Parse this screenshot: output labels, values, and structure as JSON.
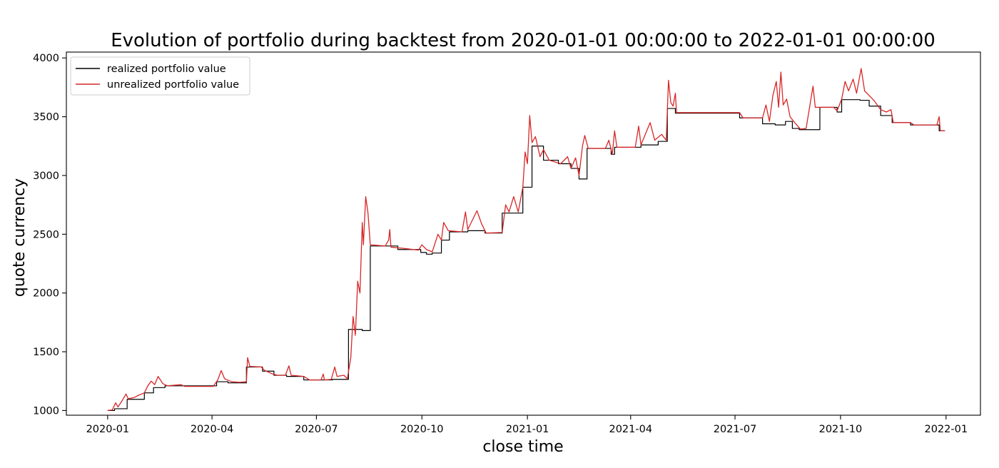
{
  "chart_data": {
    "type": "line",
    "title": "Evolution of portfolio during backtest from 2020-01-01 00:00:00 to 2022-01-01 00:00:00",
    "xlabel": "close time",
    "ylabel": "quote currency",
    "xlim": [
      "2019-11-26",
      "2022-01-31"
    ],
    "ylim": [
      960,
      4050
    ],
    "x_ticks": [
      "2020-01",
      "2020-04",
      "2020-07",
      "2020-10",
      "2021-01",
      "2021-04",
      "2021-07",
      "2021-10",
      "2022-01"
    ],
    "y_ticks": [
      1000,
      1500,
      2000,
      2500,
      3000,
      3500,
      4000
    ],
    "grid": false,
    "legend_position": "top-left",
    "series": [
      {
        "name": "realized portfolio value",
        "color": "#000000",
        "points": [
          [
            "2020-01-01",
            1000
          ],
          [
            "2020-01-07",
            1000
          ],
          [
            "2020-01-07",
            1015
          ],
          [
            "2020-01-18",
            1015
          ],
          [
            "2020-01-18",
            1095
          ],
          [
            "2020-02-02",
            1095
          ],
          [
            "2020-02-02",
            1150
          ],
          [
            "2020-02-10",
            1150
          ],
          [
            "2020-02-10",
            1195
          ],
          [
            "2020-02-20",
            1195
          ],
          [
            "2020-02-20",
            1210
          ],
          [
            "2020-04-05",
            1210
          ],
          [
            "2020-04-05",
            1245
          ],
          [
            "2020-04-15",
            1245
          ],
          [
            "2020-04-15",
            1235
          ],
          [
            "2020-05-01",
            1235
          ],
          [
            "2020-05-01",
            1370
          ],
          [
            "2020-05-15",
            1370
          ],
          [
            "2020-05-15",
            1335
          ],
          [
            "2020-05-25",
            1335
          ],
          [
            "2020-05-25",
            1300
          ],
          [
            "2020-06-05",
            1300
          ],
          [
            "2020-06-05",
            1290
          ],
          [
            "2020-06-20",
            1290
          ],
          [
            "2020-06-20",
            1260
          ],
          [
            "2020-07-15",
            1260
          ],
          [
            "2020-07-15",
            1265
          ],
          [
            "2020-07-29",
            1265
          ],
          [
            "2020-07-29",
            1690
          ],
          [
            "2020-08-10",
            1690
          ],
          [
            "2020-08-10",
            1680
          ],
          [
            "2020-08-17",
            1680
          ],
          [
            "2020-08-17",
            2400
          ],
          [
            "2020-09-10",
            2400
          ],
          [
            "2020-09-10",
            2370
          ],
          [
            "2020-09-30",
            2370
          ],
          [
            "2020-09-30",
            2345
          ],
          [
            "2020-10-05",
            2345
          ],
          [
            "2020-10-05",
            2330
          ],
          [
            "2020-10-10",
            2330
          ],
          [
            "2020-10-10",
            2340
          ],
          [
            "2020-10-18",
            2340
          ],
          [
            "2020-10-18",
            2450
          ],
          [
            "2020-10-25",
            2450
          ],
          [
            "2020-10-25",
            2520
          ],
          [
            "2020-11-10",
            2520
          ],
          [
            "2020-11-10",
            2530
          ],
          [
            "2020-11-25",
            2530
          ],
          [
            "2020-11-25",
            2510
          ],
          [
            "2020-12-10",
            2510
          ],
          [
            "2020-12-10",
            2680
          ],
          [
            "2020-12-28",
            2680
          ],
          [
            "2020-12-28",
            2900
          ],
          [
            "2021-01-05",
            2900
          ],
          [
            "2021-01-05",
            3250
          ],
          [
            "2021-01-15",
            3250
          ],
          [
            "2021-01-15",
            3130
          ],
          [
            "2021-01-28",
            3130
          ],
          [
            "2021-01-28",
            3100
          ],
          [
            "2021-02-08",
            3100
          ],
          [
            "2021-02-08",
            3060
          ],
          [
            "2021-02-15",
            3060
          ],
          [
            "2021-02-15",
            2970
          ],
          [
            "2021-02-22",
            2970
          ],
          [
            "2021-02-22",
            3230
          ],
          [
            "2021-03-15",
            3230
          ],
          [
            "2021-03-15",
            3180
          ],
          [
            "2021-03-18",
            3180
          ],
          [
            "2021-03-18",
            3240
          ],
          [
            "2021-04-10",
            3240
          ],
          [
            "2021-04-10",
            3260
          ],
          [
            "2021-04-25",
            3260
          ],
          [
            "2021-04-25",
            3290
          ],
          [
            "2021-05-03",
            3290
          ],
          [
            "2021-05-03",
            3570
          ],
          [
            "2021-05-10",
            3570
          ],
          [
            "2021-05-10",
            3530
          ],
          [
            "2021-07-05",
            3530
          ],
          [
            "2021-07-05",
            3490
          ],
          [
            "2021-07-25",
            3490
          ],
          [
            "2021-07-25",
            3440
          ],
          [
            "2021-08-05",
            3440
          ],
          [
            "2021-08-05",
            3430
          ],
          [
            "2021-08-14",
            3430
          ],
          [
            "2021-08-14",
            3460
          ],
          [
            "2021-08-20",
            3460
          ],
          [
            "2021-08-20",
            3400
          ],
          [
            "2021-08-26",
            3400
          ],
          [
            "2021-08-26",
            3390
          ],
          [
            "2021-09-13",
            3390
          ],
          [
            "2021-09-13",
            3580
          ],
          [
            "2021-09-28",
            3580
          ],
          [
            "2021-09-28",
            3540
          ],
          [
            "2021-10-02",
            3540
          ],
          [
            "2021-10-02",
            3645
          ],
          [
            "2021-10-18",
            3645
          ],
          [
            "2021-10-18",
            3640
          ],
          [
            "2021-10-26",
            3640
          ],
          [
            "2021-10-26",
            3590
          ],
          [
            "2021-11-05",
            3590
          ],
          [
            "2021-11-05",
            3510
          ],
          [
            "2021-11-15",
            3510
          ],
          [
            "2021-11-15",
            3450
          ],
          [
            "2021-12-01",
            3450
          ],
          [
            "2021-12-01",
            3430
          ],
          [
            "2021-12-26",
            3430
          ],
          [
            "2021-12-26",
            3380
          ],
          [
            "2021-12-31",
            3380
          ]
        ]
      },
      {
        "name": "unrealized portfolio value",
        "color": "#d62728",
        "points": [
          [
            "2020-01-01",
            1000
          ],
          [
            "2020-01-05",
            1005
          ],
          [
            "2020-01-08",
            1065
          ],
          [
            "2020-01-10",
            1030
          ],
          [
            "2020-01-14",
            1090
          ],
          [
            "2020-01-17",
            1140
          ],
          [
            "2020-01-19",
            1100
          ],
          [
            "2020-01-24",
            1110
          ],
          [
            "2020-01-28",
            1130
          ],
          [
            "2020-02-02",
            1150
          ],
          [
            "2020-02-05",
            1210
          ],
          [
            "2020-02-08",
            1250
          ],
          [
            "2020-02-11",
            1220
          ],
          [
            "2020-02-14",
            1290
          ],
          [
            "2020-02-18",
            1230
          ],
          [
            "2020-02-22",
            1210
          ],
          [
            "2020-03-05",
            1220
          ],
          [
            "2020-03-08",
            1205
          ],
          [
            "2020-04-02",
            1205
          ],
          [
            "2020-04-06",
            1260
          ],
          [
            "2020-04-09",
            1340
          ],
          [
            "2020-04-12",
            1270
          ],
          [
            "2020-04-18",
            1245
          ],
          [
            "2020-04-25",
            1240
          ],
          [
            "2020-05-01",
            1245
          ],
          [
            "2020-05-02",
            1450
          ],
          [
            "2020-05-04",
            1375
          ],
          [
            "2020-05-14",
            1370
          ],
          [
            "2020-05-17",
            1340
          ],
          [
            "2020-05-24",
            1310
          ],
          [
            "2020-05-28",
            1300
          ],
          [
            "2020-06-04",
            1300
          ],
          [
            "2020-06-07",
            1380
          ],
          [
            "2020-06-09",
            1300
          ],
          [
            "2020-06-20",
            1290
          ],
          [
            "2020-06-25",
            1260
          ],
          [
            "2020-07-05",
            1260
          ],
          [
            "2020-07-07",
            1310
          ],
          [
            "2020-07-08",
            1260
          ],
          [
            "2020-07-14",
            1265
          ],
          [
            "2020-07-17",
            1370
          ],
          [
            "2020-07-19",
            1290
          ],
          [
            "2020-07-25",
            1300
          ],
          [
            "2020-07-28",
            1270
          ],
          [
            "2020-07-31",
            1450
          ],
          [
            "2020-08-02",
            1800
          ],
          [
            "2020-08-04",
            1640
          ],
          [
            "2020-08-06",
            2100
          ],
          [
            "2020-08-08",
            2000
          ],
          [
            "2020-08-10",
            2600
          ],
          [
            "2020-08-11",
            2410
          ],
          [
            "2020-08-13",
            2820
          ],
          [
            "2020-08-15",
            2680
          ],
          [
            "2020-08-17",
            2410
          ],
          [
            "2020-08-30",
            2400
          ],
          [
            "2020-09-02",
            2450
          ],
          [
            "2020-09-03",
            2540
          ],
          [
            "2020-09-04",
            2390
          ],
          [
            "2020-09-15",
            2380
          ],
          [
            "2020-09-28",
            2365
          ],
          [
            "2020-10-01",
            2410
          ],
          [
            "2020-10-05",
            2370
          ],
          [
            "2020-10-10",
            2350
          ],
          [
            "2020-10-15",
            2500
          ],
          [
            "2020-10-18",
            2450
          ],
          [
            "2020-10-20",
            2600
          ],
          [
            "2020-10-24",
            2530
          ],
          [
            "2020-11-05",
            2520
          ],
          [
            "2020-11-08",
            2690
          ],
          [
            "2020-11-10",
            2540
          ],
          [
            "2020-11-18",
            2700
          ],
          [
            "2020-11-22",
            2590
          ],
          [
            "2020-11-26",
            2510
          ],
          [
            "2020-12-10",
            2515
          ],
          [
            "2020-12-13",
            2750
          ],
          [
            "2020-12-16",
            2690
          ],
          [
            "2020-12-20",
            2820
          ],
          [
            "2020-12-24",
            2690
          ],
          [
            "2020-12-28",
            2900
          ],
          [
            "2020-12-30",
            3200
          ],
          [
            "2021-01-01",
            3100
          ],
          [
            "2021-01-03",
            3510
          ],
          [
            "2021-01-05",
            3280
          ],
          [
            "2021-01-08",
            3330
          ],
          [
            "2021-01-12",
            3160
          ],
          [
            "2021-01-15",
            3220
          ],
          [
            "2021-01-20",
            3130
          ],
          [
            "2021-01-30",
            3100
          ],
          [
            "2021-02-05",
            3160
          ],
          [
            "2021-02-08",
            3060
          ],
          [
            "2021-02-12",
            3150
          ],
          [
            "2021-02-15",
            3000
          ],
          [
            "2021-02-18",
            3250
          ],
          [
            "2021-02-20",
            3340
          ],
          [
            "2021-02-23",
            3230
          ],
          [
            "2021-03-10",
            3230
          ],
          [
            "2021-03-13",
            3300
          ],
          [
            "2021-03-16",
            3180
          ],
          [
            "2021-03-18",
            3380
          ],
          [
            "2021-03-20",
            3240
          ],
          [
            "2021-04-05",
            3240
          ],
          [
            "2021-04-08",
            3420
          ],
          [
            "2021-04-10",
            3260
          ],
          [
            "2021-04-18",
            3450
          ],
          [
            "2021-04-22",
            3300
          ],
          [
            "2021-04-28",
            3350
          ],
          [
            "2021-05-02",
            3300
          ],
          [
            "2021-05-04",
            3810
          ],
          [
            "2021-05-06",
            3620
          ],
          [
            "2021-05-08",
            3590
          ],
          [
            "2021-05-10",
            3700
          ],
          [
            "2021-05-11",
            3535
          ],
          [
            "2021-07-05",
            3535
          ],
          [
            "2021-07-08",
            3490
          ],
          [
            "2021-07-25",
            3490
          ],
          [
            "2021-07-28",
            3600
          ],
          [
            "2021-07-31",
            3460
          ],
          [
            "2021-08-03",
            3680
          ],
          [
            "2021-08-06",
            3800
          ],
          [
            "2021-08-08",
            3580
          ],
          [
            "2021-08-10",
            3880
          ],
          [
            "2021-08-12",
            3600
          ],
          [
            "2021-08-15",
            3650
          ],
          [
            "2021-08-18",
            3500
          ],
          [
            "2021-08-22",
            3450
          ],
          [
            "2021-08-27",
            3395
          ],
          [
            "2021-09-01",
            3400
          ],
          [
            "2021-09-04",
            3580
          ],
          [
            "2021-09-07",
            3760
          ],
          [
            "2021-09-09",
            3580
          ],
          [
            "2021-09-25",
            3580
          ],
          [
            "2021-09-28",
            3550
          ],
          [
            "2021-10-02",
            3650
          ],
          [
            "2021-10-05",
            3800
          ],
          [
            "2021-10-08",
            3720
          ],
          [
            "2021-10-12",
            3820
          ],
          [
            "2021-10-15",
            3700
          ],
          [
            "2021-10-19",
            3910
          ],
          [
            "2021-10-22",
            3720
          ],
          [
            "2021-10-26",
            3680
          ],
          [
            "2021-10-30",
            3640
          ],
          [
            "2021-11-05",
            3560
          ],
          [
            "2021-11-10",
            3540
          ],
          [
            "2021-11-14",
            3560
          ],
          [
            "2021-11-16",
            3450
          ],
          [
            "2021-12-01",
            3450
          ],
          [
            "2021-12-04",
            3430
          ],
          [
            "2021-12-24",
            3430
          ],
          [
            "2021-12-26",
            3500
          ],
          [
            "2021-12-27",
            3380
          ],
          [
            "2021-12-31",
            3380
          ]
        ]
      }
    ]
  }
}
